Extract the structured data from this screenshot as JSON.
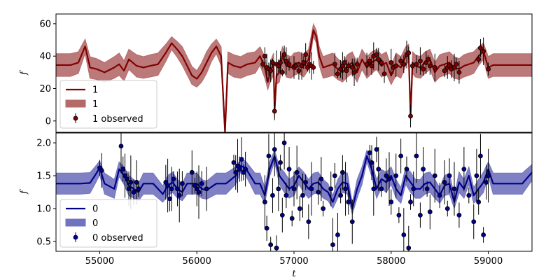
{
  "chart_data": [
    {
      "type": "line",
      "panel": "top",
      "xlabel": "",
      "ylabel": "f",
      "xlim": [
        54550,
        59450
      ],
      "ylim": [
        -7,
        66
      ],
      "yticks": [
        0,
        20,
        40,
        60
      ],
      "line_color": "#800000",
      "band_color": "#b56a6a",
      "point_color": "#800000",
      "legend": {
        "placement": "lower-left",
        "entries": [
          "1",
          "1",
          "1 observed"
        ]
      },
      "baseline": 34.5,
      "band_halfwidth": 7,
      "model": {
        "x": [
          54550,
          54700,
          54780,
          54850,
          54900,
          54970,
          55050,
          55150,
          55200,
          55250,
          55300,
          55380,
          55450,
          55520,
          55600,
          55680,
          55740,
          55800,
          55850,
          55950,
          56000,
          56050,
          56100,
          56150,
          56200,
          56250,
          56290,
          56320,
          56380,
          56450,
          56520,
          56600,
          56650,
          56700,
          56730,
          56760,
          56790,
          56800,
          56820,
          56850,
          56880,
          56920,
          56970,
          57000,
          57050,
          57100,
          57150,
          57200,
          57230,
          57260,
          57300,
          57350,
          57400,
          57450,
          57500,
          57550,
          57600,
          57650,
          57700,
          57750,
          57800,
          57850,
          57900,
          57950,
          58000,
          58050,
          58100,
          58150,
          58180,
          58200,
          58220,
          58250,
          58300,
          58350,
          58400,
          58450,
          58500,
          58550,
          58600,
          58650,
          58700,
          58750,
          58800,
          58850,
          58900,
          58950,
          59000,
          59050,
          59100,
          59200,
          59300,
          59450
        ],
        "y": [
          34.5,
          34.5,
          36,
          46,
          33,
          32,
          30,
          33,
          35,
          31,
          38,
          34,
          33,
          34,
          35,
          42,
          48,
          44,
          40,
          28,
          26,
          30,
          36,
          42,
          46,
          40,
          -7,
          36,
          34,
          33,
          35,
          36,
          40,
          33,
          24,
          31,
          35,
          6,
          28,
          30,
          40,
          34,
          33,
          35,
          36,
          34,
          38,
          56,
          52,
          40,
          33,
          34,
          35,
          32,
          30,
          34,
          36,
          30,
          38,
          33,
          36,
          38,
          34,
          36,
          28,
          35,
          33,
          40,
          42,
          3,
          36,
          34,
          33,
          36,
          38,
          30,
          34,
          35,
          36,
          33,
          32,
          34,
          35,
          36,
          40,
          43,
          33,
          34.5,
          34.5,
          34.5,
          34.5,
          34.5
        ]
      },
      "observed": {
        "x": [
          56680,
          56700,
          56720,
          56740,
          56760,
          56780,
          56800,
          56820,
          56840,
          56860,
          56880,
          56900,
          56920,
          56950,
          57000,
          57020,
          57050,
          57080,
          57100,
          57120,
          57140,
          57160,
          57180,
          57200,
          57420,
          57450,
          57480,
          57500,
          57520,
          57540,
          57560,
          57600,
          57620,
          57650,
          57750,
          57780,
          57800,
          57820,
          57850,
          57870,
          57900,
          57930,
          58000,
          58020,
          58050,
          58100,
          58130,
          58160,
          58180,
          58200,
          58220,
          58260,
          58300,
          58330,
          58360,
          58380,
          58400,
          58450,
          58550,
          58580,
          58600,
          58620,
          58650,
          58670,
          58700,
          58900,
          58920,
          58950,
          59000
        ],
        "y": [
          35,
          40,
          33,
          32,
          31,
          36,
          6,
          35,
          34,
          36,
          30,
          41,
          37,
          35,
          33,
          34,
          31,
          34,
          36,
          41,
          33,
          35,
          34,
          33,
          35,
          29,
          32,
          34,
          36,
          31,
          34,
          33,
          30,
          35,
          35,
          37,
          34,
          40,
          41,
          38,
          36,
          29,
          36,
          33,
          34,
          37,
          35,
          41,
          42,
          3,
          34,
          35,
          37,
          32,
          36,
          38,
          34,
          33,
          31,
          33,
          34,
          32,
          33,
          35,
          30,
          38,
          45,
          43,
          32
        ]
      }
    },
    {
      "type": "line",
      "panel": "bottom",
      "xlabel": "t",
      "ylabel": "f",
      "xlim": [
        54550,
        59450
      ],
      "ylim": [
        0.35,
        2.15
      ],
      "xticks": [
        55000,
        56000,
        57000,
        58000,
        59000
      ],
      "yticks": [
        0.5,
        1.0,
        1.5,
        2.0
      ],
      "line_color": "#00008b",
      "band_color": "#7273bf",
      "point_color": "#00008b",
      "legend": {
        "placement": "lower-left",
        "entries": [
          "0",
          "0",
          "0 observed"
        ]
      },
      "baseline": 1.38,
      "band_halfwidth": 0.16,
      "model": {
        "x": [
          54550,
          54700,
          54800,
          54900,
          54950,
          55000,
          55050,
          55150,
          55200,
          55250,
          55300,
          55350,
          55400,
          55450,
          55550,
          55600,
          55650,
          55700,
          55750,
          55800,
          55850,
          55900,
          56000,
          56050,
          56100,
          56200,
          56300,
          56400,
          56450,
          56500,
          56550,
          56600,
          56650,
          56700,
          56750,
          56800,
          56850,
          56900,
          56950,
          57000,
          57050,
          57100,
          57150,
          57200,
          57250,
          57300,
          57350,
          57400,
          57450,
          57500,
          57550,
          57600,
          57650,
          57700,
          57750,
          57800,
          57850,
          57900,
          57950,
          58000,
          58050,
          58100,
          58150,
          58200,
          58250,
          58300,
          58350,
          58400,
          58450,
          58500,
          58550,
          58600,
          58650,
          58700,
          58750,
          58800,
          58850,
          58900,
          58950,
          59000,
          59050,
          59150,
          59250,
          59350,
          59450
        ],
        "y": [
          1.38,
          1.38,
          1.38,
          1.39,
          1.5,
          1.62,
          1.38,
          1.3,
          1.6,
          1.5,
          1.35,
          1.3,
          1.25,
          1.38,
          1.38,
          1.3,
          1.22,
          1.35,
          1.4,
          1.3,
          1.25,
          1.38,
          1.38,
          1.3,
          1.28,
          1.38,
          1.38,
          1.5,
          1.65,
          1.62,
          1.5,
          1.38,
          1.38,
          1.2,
          1.6,
          1.8,
          1.5,
          1.4,
          1.3,
          1.35,
          1.5,
          1.4,
          1.3,
          1.38,
          1.4,
          1.3,
          1.25,
          1.1,
          1.3,
          1.4,
          1.38,
          1.0,
          1.3,
          1.5,
          1.8,
          1.6,
          1.3,
          1.45,
          1.4,
          1.5,
          1.3,
          1.2,
          1.5,
          1.4,
          1.3,
          1.3,
          1.38,
          1.4,
          1.3,
          1.2,
          1.35,
          1.38,
          1.1,
          1.4,
          1.3,
          1.5,
          1.2,
          1.3,
          1.4,
          1.6,
          1.38,
          1.38,
          1.38,
          1.38,
          1.55
        ]
      },
      "observed": {
        "x": [
          55000,
          55020,
          55220,
          55240,
          55260,
          55280,
          55300,
          55320,
          55350,
          55380,
          55400,
          55680,
          55700,
          55720,
          55740,
          55760,
          55800,
          55820,
          55850,
          55950,
          55980,
          56000,
          56020,
          56050,
          56100,
          56380,
          56400,
          56420,
          56440,
          56460,
          56480,
          56500,
          56700,
          56720,
          56740,
          56760,
          56780,
          56800,
          56820,
          56840,
          56860,
          56880,
          56900,
          56920,
          56950,
          56980,
          57000,
          57030,
          57060,
          57090,
          57120,
          57150,
          57180,
          57250,
          57280,
          57300,
          57380,
          57400,
          57420,
          57450,
          57480,
          57500,
          57530,
          57560,
          57600,
          57780,
          57800,
          57820,
          57850,
          57870,
          57900,
          57950,
          57980,
          58000,
          58050,
          58080,
          58100,
          58130,
          58160,
          58180,
          58200,
          58230,
          58260,
          58300,
          58330,
          58370,
          58400,
          58450,
          58500,
          58550,
          58580,
          58600,
          58650,
          58700,
          58750,
          58800,
          58850,
          58880,
          58900,
          58920,
          58950,
          58980,
          59000
        ],
        "y": [
          1.62,
          1.58,
          1.95,
          1.6,
          1.5,
          1.45,
          1.3,
          1.4,
          1.25,
          1.4,
          1.3,
          1.4,
          1.35,
          1.15,
          1.3,
          1.45,
          1.3,
          1.2,
          1.38,
          1.55,
          1.35,
          1.3,
          1.25,
          1.38,
          1.3,
          1.7,
          1.55,
          1.65,
          1.6,
          1.75,
          1.55,
          1.6,
          1.1,
          0.7,
          1.8,
          0.45,
          1.2,
          1.9,
          0.4,
          1.3,
          1.7,
          0.9,
          2.0,
          1.2,
          1.6,
          0.85,
          1.3,
          1.55,
          1.0,
          1.2,
          1.4,
          0.8,
          1.3,
          1.25,
          1.45,
          1.0,
          1.3,
          0.45,
          1.5,
          0.6,
          1.2,
          1.55,
          1.3,
          1.1,
          0.8,
          1.85,
          1.7,
          1.3,
          1.9,
          1.6,
          1.3,
          1.5,
          1.45,
          1.1,
          1.5,
          0.9,
          1.8,
          0.6,
          1.6,
          0.4,
          1.1,
          1.3,
          1.8,
          0.9,
          1.6,
          1.3,
          0.95,
          1.5,
          1.2,
          1.4,
          1.0,
          1.5,
          1.3,
          0.9,
          1.6,
          1.2,
          0.8,
          1.5,
          1.1,
          1.8,
          0.6,
          1.4,
          1.5
        ]
      }
    }
  ]
}
